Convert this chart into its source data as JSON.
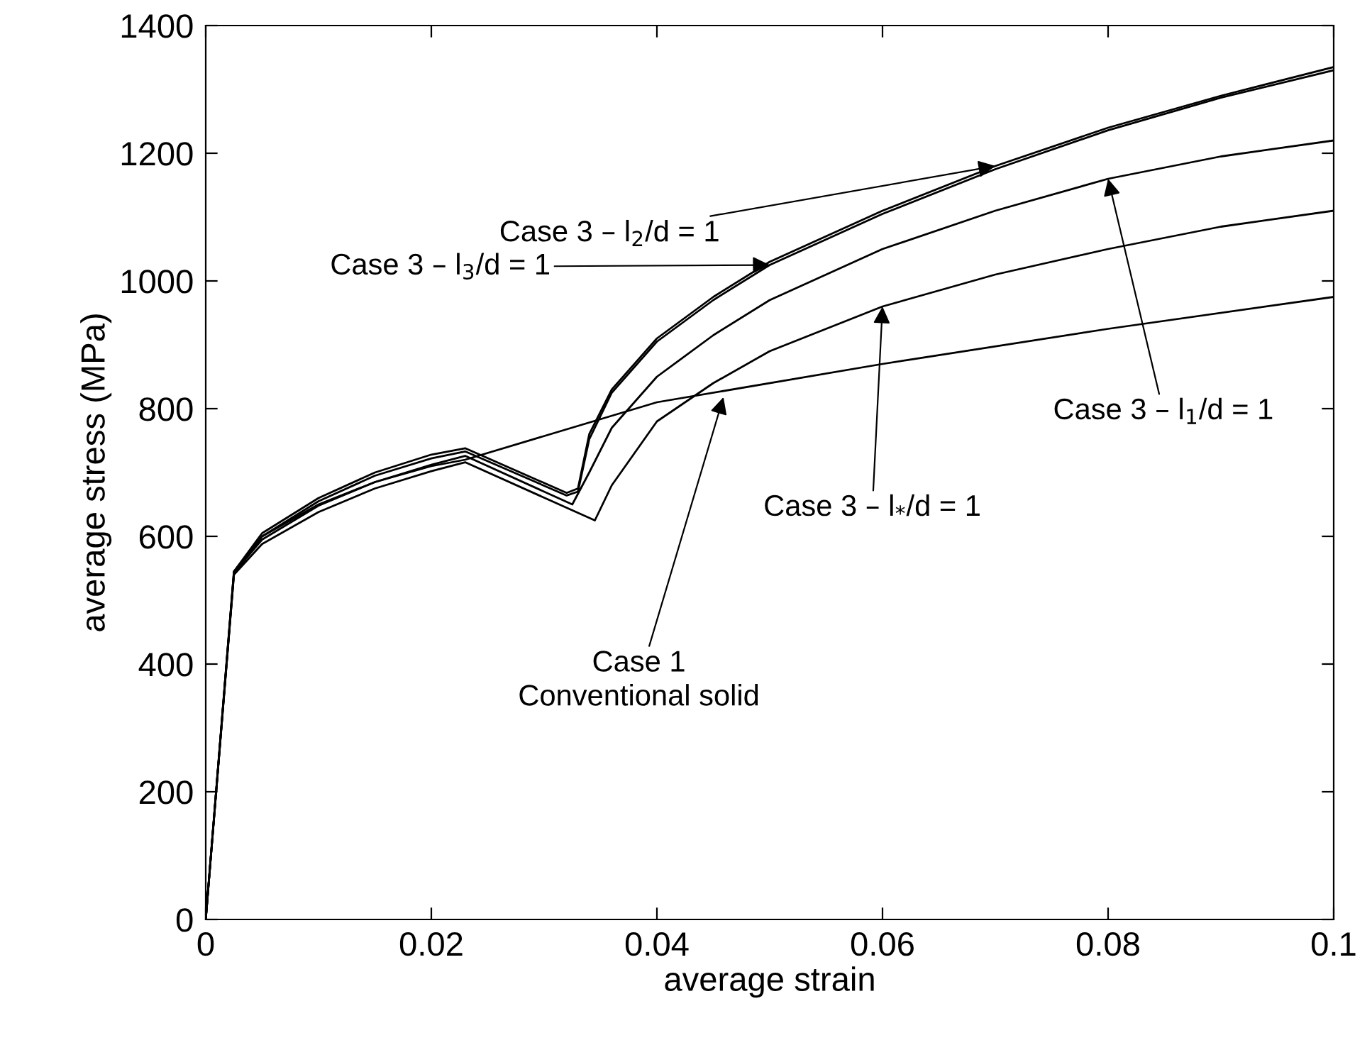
{
  "chart_data": {
    "type": "line",
    "xlabel": "average strain",
    "ylabel": "average stress (MPa)",
    "xlim": [
      0,
      0.1
    ],
    "ylim": [
      0,
      1400
    ],
    "xticks": [
      0,
      0.02,
      0.04,
      0.06,
      0.08,
      0.1
    ],
    "yticks": [
      0,
      200,
      400,
      600,
      800,
      1000,
      1200,
      1400
    ],
    "grid": false,
    "legend": false,
    "marker": "none",
    "line_style": "solid",
    "series": [
      {
        "color": "#000000",
        "x": [
          0,
          0.0025,
          0.005,
          0.01,
          0.015,
          0.02,
          0.023,
          0.04,
          0.06,
          0.08,
          0.1
        ],
        "values": [
          0,
          540,
          600,
          650,
          685,
          710,
          720,
          810,
          870,
          925,
          975
        ]
      },
      {
        "color": "#000000",
        "x": [
          0,
          0.0025,
          0.005,
          0.01,
          0.015,
          0.02,
          0.023,
          0.032,
          0.033,
          0.034,
          0.036,
          0.04,
          0.045,
          0.05,
          0.06,
          0.07,
          0.08,
          0.09,
          0.1
        ],
        "values": [
          0,
          545,
          605,
          660,
          700,
          728,
          738,
          668,
          675,
          760,
          830,
          910,
          975,
          1030,
          1110,
          1180,
          1240,
          1290,
          1335
        ]
      },
      {
        "color": "#000000",
        "x": [
          0,
          0.0025,
          0.005,
          0.01,
          0.015,
          0.02,
          0.023,
          0.032,
          0.033,
          0.034,
          0.036,
          0.04,
          0.045,
          0.05,
          0.06,
          0.07,
          0.08,
          0.09,
          0.1
        ],
        "values": [
          0,
          545,
          600,
          655,
          695,
          722,
          733,
          664,
          670,
          752,
          825,
          905,
          970,
          1025,
          1105,
          1175,
          1236,
          1287,
          1330
        ]
      },
      {
        "color": "#000000",
        "x": [
          0,
          0.0025,
          0.005,
          0.01,
          0.015,
          0.02,
          0.023,
          0.0325,
          0.034,
          0.036,
          0.04,
          0.045,
          0.05,
          0.06,
          0.07,
          0.08,
          0.09,
          0.1
        ],
        "values": [
          0,
          543,
          595,
          648,
          685,
          712,
          726,
          650,
          700,
          770,
          850,
          915,
          970,
          1050,
          1110,
          1160,
          1195,
          1220
        ]
      },
      {
        "color": "#000000",
        "x": [
          0,
          0.0025,
          0.005,
          0.01,
          0.015,
          0.02,
          0.023,
          0.0345,
          0.036,
          0.038,
          0.04,
          0.045,
          0.05,
          0.06,
          0.07,
          0.08,
          0.09,
          0.1
        ],
        "values": [
          0,
          540,
          588,
          638,
          675,
          702,
          716,
          625,
          680,
          730,
          780,
          840,
          890,
          960,
          1010,
          1050,
          1085,
          1110
        ]
      }
    ],
    "annotations": [
      {
        "text": "Case 3 – l$_{2}$/d = 1",
        "x": 0.07,
        "y": 1180
      },
      {
        "text": "Case 3 – l$_{3}$/d = 1",
        "x": 0.05,
        "y": 1025
      },
      {
        "text": "Case 3 – l$_{1}$/d = 1",
        "x": 0.08,
        "y": 1160
      },
      {
        "text": "Case 3 – l$_{*}$/d = 1",
        "x": 0.06,
        "y": 960
      },
      {
        "text": "Case 1\nConventional solid",
        "x": 0.0459,
        "y": 818
      }
    ]
  }
}
